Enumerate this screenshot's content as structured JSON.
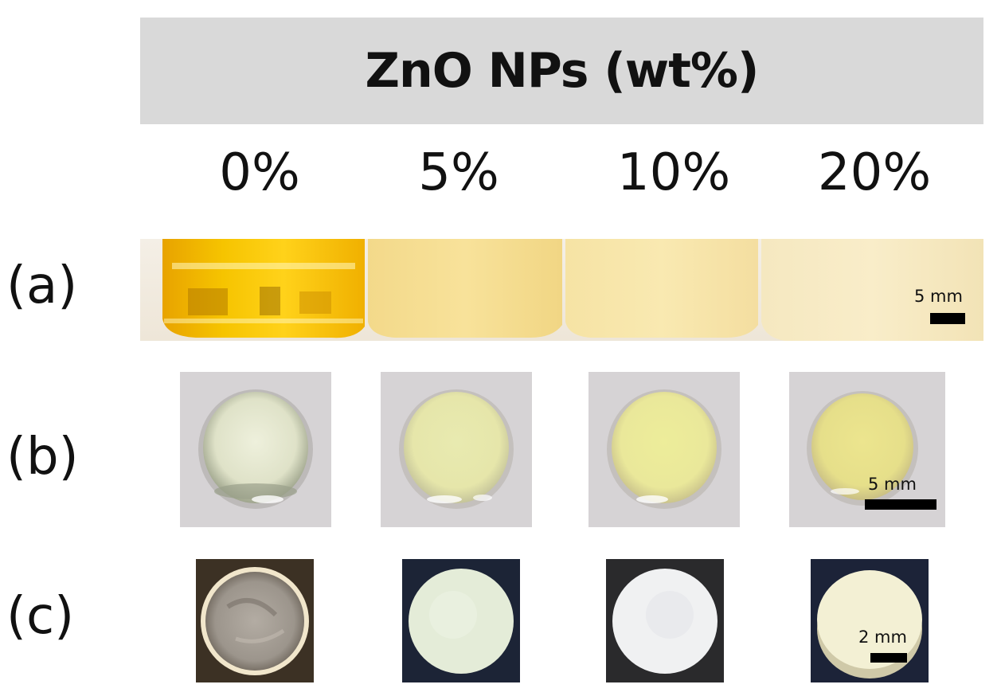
{
  "header": {
    "title": "ZnO NPs (wt%)"
  },
  "concentrations": [
    "0%",
    "5%",
    "10%",
    "20%"
  ],
  "rows": {
    "a": {
      "label": "(a)",
      "scale": "5 mm"
    },
    "b": {
      "label": "(b)",
      "scale": "5 mm"
    },
    "c": {
      "label": "(c)",
      "scale": "2 mm"
    }
  },
  "colors": {
    "header_bg": "#d9d9d9",
    "resin_0": "#f2b400",
    "resin_cream": "#f6e3a0",
    "drop_bg": "#d2d0d2",
    "disk_dark_bg": "#1c2233"
  }
}
